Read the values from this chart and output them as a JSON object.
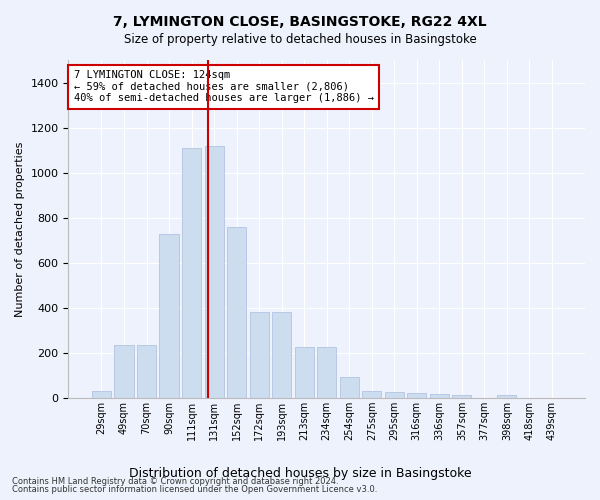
{
  "title": "7, LYMINGTON CLOSE, BASINGSTOKE, RG22 4XL",
  "subtitle": "Size of property relative to detached houses in Basingstoke",
  "xlabel": "Distribution of detached houses by size in Basingstoke",
  "ylabel": "Number of detached properties",
  "bar_color": "#ccddf0",
  "bar_edge_color": "#aabbdd",
  "bg_color": "#eef2fc",
  "grid_color": "#ffffff",
  "categories": [
    "29sqm",
    "49sqm",
    "70sqm",
    "90sqm",
    "111sqm",
    "131sqm",
    "152sqm",
    "172sqm",
    "193sqm",
    "213sqm",
    "234sqm",
    "254sqm",
    "275sqm",
    "295sqm",
    "316sqm",
    "336sqm",
    "357sqm",
    "377sqm",
    "398sqm",
    "418sqm",
    "439sqm"
  ],
  "values": [
    30,
    235,
    235,
    725,
    1110,
    1120,
    760,
    380,
    380,
    225,
    225,
    90,
    30,
    25,
    20,
    15,
    10,
    0,
    10,
    0,
    0
  ],
  "ylim": [
    0,
    1500
  ],
  "yticks": [
    0,
    200,
    400,
    600,
    800,
    1000,
    1200,
    1400
  ],
  "vline_index": 4.75,
  "annotation_text": "7 LYMINGTON CLOSE: 124sqm\n← 59% of detached houses are smaller (2,806)\n40% of semi-detached houses are larger (1,886) →",
  "annotation_box_color": "#ffffff",
  "annotation_box_edge": "#cc0000",
  "vline_color": "#cc0000",
  "footer1": "Contains HM Land Registry data © Crown copyright and database right 2024.",
  "footer2": "Contains public sector information licensed under the Open Government Licence v3.0."
}
